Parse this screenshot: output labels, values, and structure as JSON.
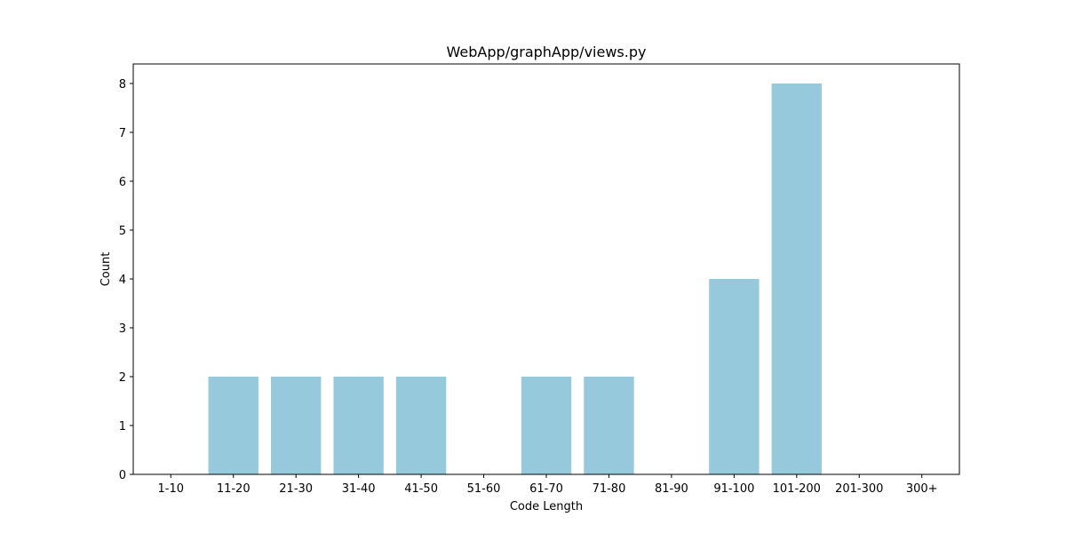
{
  "chart_data": {
    "type": "bar",
    "title": "WebApp/graphApp/views.py",
    "xlabel": "Code Length",
    "ylabel": "Count",
    "categories": [
      "1-10",
      "11-20",
      "21-30",
      "31-40",
      "41-50",
      "51-60",
      "61-70",
      "71-80",
      "81-90",
      "91-100",
      "101-200",
      "201-300",
      "300+"
    ],
    "values": [
      0,
      2,
      2,
      2,
      2,
      0,
      2,
      2,
      0,
      4,
      8,
      0,
      0
    ],
    "ylim": [
      0,
      8.4
    ],
    "yticks": [
      0,
      1,
      2,
      3,
      4,
      5,
      6,
      7,
      8
    ],
    "grid": false,
    "legend": "none",
    "bar_color": "#96c9dc"
  }
}
